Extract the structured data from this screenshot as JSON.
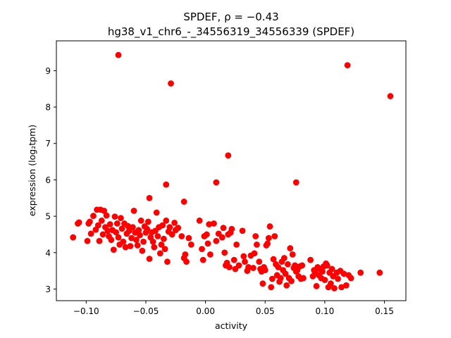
{
  "chart_data": {
    "type": "scatter",
    "title_line1": "SPDEF, ρ = −0.43",
    "title_line2": "hg38_v1_chr6_-_34556319_34556339 (SPDEF)",
    "xlabel": "activity",
    "ylabel": "expression (log₂tpm)",
    "xlim": [
      -0.125,
      0.168
    ],
    "ylim": [
      2.68,
      9.82
    ],
    "xticks": [
      -0.1,
      -0.05,
      0.0,
      0.05,
      0.1,
      0.15
    ],
    "xtick_labels": [
      "−0.10",
      "−0.05",
      "0.00",
      "0.05",
      "0.10",
      "0.15"
    ],
    "yticks": [
      3,
      4,
      5,
      6,
      7,
      8,
      9
    ],
    "ytick_labels": [
      "3",
      "4",
      "5",
      "6",
      "7",
      "8",
      "9"
    ],
    "grid": false,
    "marker_color": "#ff0000",
    "series": [
      {
        "points": [
          [
            -0.073,
            9.43
          ],
          [
            0.119,
            9.15
          ],
          [
            -0.029,
            8.65
          ],
          [
            0.155,
            8.3
          ],
          [
            0.019,
            6.67
          ],
          [
            0.009,
            5.93
          ],
          [
            0.076,
            5.93
          ],
          [
            -0.033,
            5.87
          ],
          [
            -0.047,
            5.5
          ],
          [
            -0.018,
            5.4
          ],
          [
            -0.111,
            4.42
          ],
          [
            -0.107,
            4.8
          ],
          [
            -0.106,
            4.83
          ],
          [
            -0.099,
            4.32
          ],
          [
            -0.098,
            4.8
          ],
          [
            -0.097,
            4.85
          ],
          [
            -0.096,
            4.52
          ],
          [
            -0.094,
            5.01
          ],
          [
            -0.092,
            4.63
          ],
          [
            -0.091,
            5.18
          ],
          [
            -0.09,
            4.75
          ],
          [
            -0.089,
            4.32
          ],
          [
            -0.088,
            5.18
          ],
          [
            -0.087,
            4.88
          ],
          [
            -0.086,
            4.5
          ],
          [
            -0.085,
            5.15
          ],
          [
            -0.084,
            4.7
          ],
          [
            -0.083,
            5.02
          ],
          [
            -0.082,
            4.6
          ],
          [
            -0.081,
            4.45
          ],
          [
            -0.08,
            4.78
          ],
          [
            -0.079,
            4.35
          ],
          [
            -0.078,
            4.62
          ],
          [
            -0.077,
            4.08
          ],
          [
            -0.076,
            4.99
          ],
          [
            -0.075,
            4.56
          ],
          [
            -0.074,
            4.8
          ],
          [
            -0.073,
            4.42
          ],
          [
            -0.072,
            4.22
          ],
          [
            -0.071,
            4.95
          ],
          [
            -0.07,
            4.66
          ],
          [
            -0.069,
            4.3
          ],
          [
            -0.068,
            4.8
          ],
          [
            -0.067,
            4.15
          ],
          [
            -0.066,
            4.52
          ],
          [
            -0.065,
            4.73
          ],
          [
            -0.064,
            4.6
          ],
          [
            -0.063,
            4.18
          ],
          [
            -0.062,
            4.4
          ],
          [
            -0.061,
            4.7
          ],
          [
            -0.06,
            5.15
          ],
          [
            -0.059,
            4.55
          ],
          [
            -0.058,
            4.35
          ],
          [
            -0.057,
            4.2
          ],
          [
            -0.056,
            4.62
          ],
          [
            -0.055,
            4.48
          ],
          [
            -0.054,
            4.88
          ],
          [
            -0.053,
            4.05
          ],
          [
            -0.052,
            4.3
          ],
          [
            -0.051,
            4.72
          ],
          [
            -0.05,
            4.55
          ],
          [
            -0.049,
            4.65
          ],
          [
            -0.048,
            4.85
          ],
          [
            -0.047,
            3.83
          ],
          [
            -0.046,
            4.42
          ],
          [
            -0.045,
            4.56
          ],
          [
            -0.044,
            4.3
          ],
          [
            -0.043,
            4.15
          ],
          [
            -0.042,
            4.6
          ],
          [
            -0.041,
            5.1
          ],
          [
            -0.04,
            4.45
          ],
          [
            -0.039,
            4.7
          ],
          [
            -0.038,
            3.98
          ],
          [
            -0.037,
            4.22
          ],
          [
            -0.036,
            4.75
          ],
          [
            -0.035,
            4.38
          ],
          [
            -0.034,
            4.1
          ],
          [
            -0.033,
            4.88
          ],
          [
            -0.032,
            3.75
          ],
          [
            -0.031,
            4.58
          ],
          [
            -0.03,
            4.7
          ],
          [
            -0.028,
            4.5
          ],
          [
            -0.026,
            4.82
          ],
          [
            -0.025,
            4.62
          ],
          [
            -0.023,
            4.68
          ],
          [
            -0.02,
            4.45
          ],
          [
            -0.018,
            3.85
          ],
          [
            -0.017,
            3.95
          ],
          [
            -0.016,
            3.75
          ],
          [
            -0.014,
            4.4
          ],
          [
            -0.012,
            4.22
          ],
          [
            -0.005,
            4.88
          ],
          [
            -0.003,
            4.1
          ],
          [
            -0.002,
            3.8
          ],
          [
            -0.001,
            4.45
          ],
          [
            0.001,
            4.5
          ],
          [
            0.002,
            4.25
          ],
          [
            0.003,
            4.78
          ],
          [
            0.004,
            3.95
          ],
          [
            0.007,
            4.8
          ],
          [
            0.009,
            4.32
          ],
          [
            0.011,
            4.52
          ],
          [
            0.014,
            4.42
          ],
          [
            0.015,
            4.68
          ],
          [
            0.016,
            4.0
          ],
          [
            0.017,
            3.65
          ],
          [
            0.018,
            3.72
          ],
          [
            0.019,
            4.5
          ],
          [
            0.02,
            3.6
          ],
          [
            0.021,
            4.55
          ],
          [
            0.022,
            4.65
          ],
          [
            0.024,
            3.8
          ],
          [
            0.025,
            3.55
          ],
          [
            0.026,
            4.22
          ],
          [
            0.028,
            3.65
          ],
          [
            0.031,
            4.6
          ],
          [
            0.032,
            3.9
          ],
          [
            0.033,
            3.75
          ],
          [
            0.035,
            3.5
          ],
          [
            0.036,
            3.6
          ],
          [
            0.038,
            3.92
          ],
          [
            0.04,
            3.58
          ],
          [
            0.041,
            3.98
          ],
          [
            0.042,
            4.45
          ],
          [
            0.043,
            4.22
          ],
          [
            0.045,
            3.75
          ],
          [
            0.046,
            3.55
          ],
          [
            0.047,
            3.48
          ],
          [
            0.048,
            3.15
          ],
          [
            0.049,
            3.6
          ],
          [
            0.05,
            3.52
          ],
          [
            0.051,
            4.2
          ],
          [
            0.052,
            4.25
          ],
          [
            0.053,
            4.4
          ],
          [
            0.054,
            4.72
          ],
          [
            0.055,
            3.05
          ],
          [
            0.056,
            3.28
          ],
          [
            0.057,
            3.82
          ],
          [
            0.058,
            4.45
          ],
          [
            0.059,
            3.68
          ],
          [
            0.06,
            3.38
          ],
          [
            0.061,
            3.6
          ],
          [
            0.062,
            3.2
          ],
          [
            0.063,
            3.3
          ],
          [
            0.064,
            3.75
          ],
          [
            0.065,
            3.52
          ],
          [
            0.066,
            3.85
          ],
          [
            0.067,
            3.42
          ],
          [
            0.068,
            3.1
          ],
          [
            0.069,
            3.68
          ],
          [
            0.07,
            3.3
          ],
          [
            0.071,
            4.12
          ],
          [
            0.072,
            3.22
          ],
          [
            0.073,
            3.95
          ],
          [
            0.074,
            3.58
          ],
          [
            0.075,
            3.65
          ],
          [
            0.076,
            3.48
          ],
          [
            0.077,
            3.52
          ],
          [
            0.078,
            3.35
          ],
          [
            0.079,
            3.62
          ],
          [
            0.08,
            3.28
          ],
          [
            0.081,
            3.65
          ],
          [
            0.082,
            3.3
          ],
          [
            0.088,
            3.8
          ],
          [
            0.09,
            3.35
          ],
          [
            0.091,
            3.52
          ],
          [
            0.092,
            3.45
          ],
          [
            0.093,
            3.08
          ],
          [
            0.094,
            3.6
          ],
          [
            0.095,
            3.38
          ],
          [
            0.096,
            3.55
          ],
          [
            0.097,
            3.3
          ],
          [
            0.098,
            3.48
          ],
          [
            0.099,
            3.62
          ],
          [
            0.1,
            3.25
          ],
          [
            0.101,
            3.7
          ],
          [
            0.102,
            3.65
          ],
          [
            0.103,
            3.05
          ],
          [
            0.104,
            3.45
          ],
          [
            0.105,
            3.15
          ],
          [
            0.106,
            3.55
          ],
          [
            0.107,
            3.35
          ],
          [
            0.108,
            3.02
          ],
          [
            0.11,
            3.45
          ],
          [
            0.111,
            3.28
          ],
          [
            0.113,
            3.5
          ],
          [
            0.114,
            3.05
          ],
          [
            0.116,
            3.42
          ],
          [
            0.118,
            3.1
          ],
          [
            0.12,
            3.38
          ],
          [
            0.122,
            3.3
          ],
          [
            0.13,
            3.45
          ],
          [
            0.146,
            3.45
          ]
        ]
      }
    ]
  }
}
